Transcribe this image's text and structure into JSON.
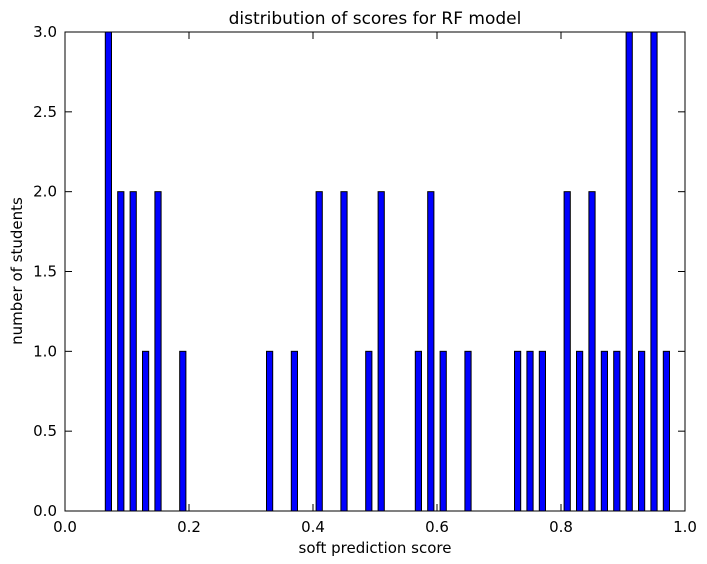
{
  "chart_data": {
    "type": "bar",
    "title": "distribution of scores for RF model",
    "xlabel": "soft prediction score",
    "ylabel": "number of students",
    "xlim": [
      0.0,
      1.0
    ],
    "ylim": [
      0.0,
      3.0
    ],
    "grid": false,
    "bar_width": 0.01,
    "bar_color": "#0000ff",
    "bar_edge_color": "#000000",
    "xticks": [
      "0.0",
      "0.2",
      "0.4",
      "0.6",
      "0.8",
      "1.0"
    ],
    "yticks": [
      "0.0",
      "0.5",
      "1.0",
      "1.5",
      "2.0",
      "2.5",
      "3.0"
    ],
    "bars": [
      {
        "x": 0.07,
        "value": 3
      },
      {
        "x": 0.09,
        "value": 2
      },
      {
        "x": 0.11,
        "value": 2
      },
      {
        "x": 0.13,
        "value": 1
      },
      {
        "x": 0.15,
        "value": 2
      },
      {
        "x": 0.19,
        "value": 1
      },
      {
        "x": 0.33,
        "value": 1
      },
      {
        "x": 0.37,
        "value": 1
      },
      {
        "x": 0.41,
        "value": 2
      },
      {
        "x": 0.45,
        "value": 2
      },
      {
        "x": 0.49,
        "value": 1
      },
      {
        "x": 0.51,
        "value": 2
      },
      {
        "x": 0.57,
        "value": 1
      },
      {
        "x": 0.59,
        "value": 2
      },
      {
        "x": 0.61,
        "value": 1
      },
      {
        "x": 0.65,
        "value": 1
      },
      {
        "x": 0.73,
        "value": 1
      },
      {
        "x": 0.75,
        "value": 1
      },
      {
        "x": 0.77,
        "value": 1
      },
      {
        "x": 0.81,
        "value": 2
      },
      {
        "x": 0.83,
        "value": 1
      },
      {
        "x": 0.85,
        "value": 2
      },
      {
        "x": 0.87,
        "value": 1
      },
      {
        "x": 0.89,
        "value": 1
      },
      {
        "x": 0.91,
        "value": 3
      },
      {
        "x": 0.93,
        "value": 1
      },
      {
        "x": 0.95,
        "value": 3
      },
      {
        "x": 0.97,
        "value": 1
      }
    ]
  }
}
